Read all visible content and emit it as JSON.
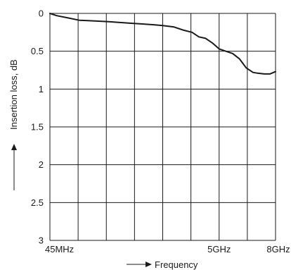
{
  "chart_data": {
    "type": "line",
    "title": "",
    "xlabel": "Frequency",
    "ylabel": "Insertion loss, dB",
    "x_scale": "linear-by-column",
    "x_tick_labels": [
      "45MHz",
      "5GHz",
      "8GHz"
    ],
    "y_ticks": [
      0,
      0.5,
      1,
      1.5,
      2,
      2.5,
      3
    ],
    "y_tick_labels": [
      "0",
      "0.5",
      "1",
      "1.5",
      "2",
      "2.5",
      "3"
    ],
    "ylim": [
      0,
      3
    ],
    "y_inverted": true,
    "grid": true,
    "grid_columns": 8,
    "legend": "none",
    "series": [
      {
        "x_fraction": [
          0.0,
          0.03,
          0.08,
          0.13,
          0.2,
          0.26,
          0.31,
          0.36,
          0.41,
          0.46,
          0.5,
          0.55,
          0.59,
          0.63,
          0.66,
          0.69,
          0.72,
          0.75,
          0.78,
          0.81,
          0.84,
          0.87,
          0.9,
          0.92,
          0.95,
          0.975,
          1.0
        ],
        "values": [
          0.0,
          0.03,
          0.06,
          0.09,
          0.1,
          0.11,
          0.12,
          0.13,
          0.14,
          0.15,
          0.16,
          0.18,
          0.22,
          0.25,
          0.31,
          0.33,
          0.39,
          0.47,
          0.5,
          0.53,
          0.6,
          0.72,
          0.78,
          0.79,
          0.8,
          0.8,
          0.77
        ]
      }
    ],
    "colors": {
      "line": "#1a1a1a",
      "grid": "#1a1a1a",
      "text": "#1a1a1a"
    }
  }
}
